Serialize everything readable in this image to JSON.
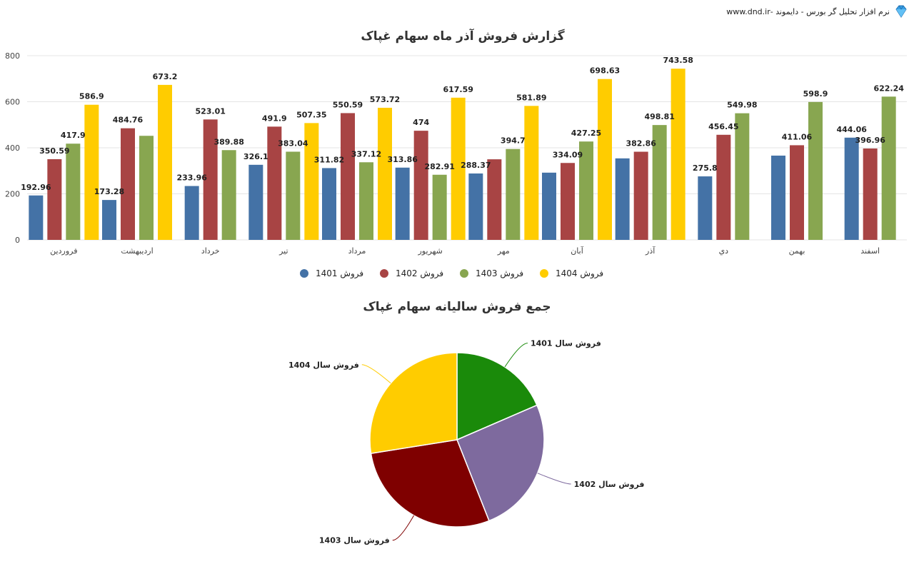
{
  "header": {
    "brand_text": "نرم افزار تحلیل گر بورس - دایموند -www.dnd.ir"
  },
  "colors": {
    "s1401": "#4472a6",
    "s1402": "#a84444",
    "s1403": "#88a650",
    "s1404": "#ffcc00",
    "pie1401": "#1a8a0a",
    "pie1402": "#7e6a9e",
    "pie1403": "#7f0000",
    "pie1404": "#ffcc00"
  },
  "chart_data": [
    {
      "type": "bar",
      "title": "گزارش فروش آذر ماه سهام غپاک",
      "categories": [
        "فروردین",
        "اردیبهشت",
        "خرداد",
        "تیر",
        "مرداد",
        "شهریور",
        "مهر",
        "آبان",
        "آذر",
        "دي",
        "بهمن",
        "اسفند"
      ],
      "ylim": [
        0,
        800
      ],
      "yticks": [
        0,
        200,
        400,
        600,
        800
      ],
      "grid": true,
      "legend_position": "bottom",
      "series": [
        {
          "name": "فروش 1401",
          "color": "#4472a6",
          "values": [
            192.96,
            173.28,
            233.96,
            326.1,
            311.82,
            313.86,
            288.37,
            292,
            354,
            275.8,
            366,
            444.06
          ],
          "labels": [
            "192.96",
            "173.28",
            "233.96",
            "326.1",
            "311.82",
            "313.86",
            "288.37",
            "",
            "",
            "275.8",
            "",
            "444.06"
          ]
        },
        {
          "name": "فروش 1402",
          "color": "#a84444",
          "values": [
            350.59,
            484.76,
            523.01,
            491.9,
            550.59,
            474,
            350,
            334.09,
            382.86,
            456.45,
            411.06,
            396.96
          ],
          "labels": [
            "350.59",
            "484.76",
            "523.01",
            "491.9",
            "550.59",
            "474",
            "",
            "334.09",
            "382.86",
            "456.45",
            "411.06",
            "396.96"
          ]
        },
        {
          "name": "فروش 1403",
          "color": "#88a650",
          "values": [
            417.9,
            452,
            389.88,
            383.04,
            337.12,
            282.91,
            394.7,
            427.25,
            498.81,
            549.98,
            598.9,
            622.24
          ],
          "labels": [
            "417.9",
            "",
            "389.88",
            "383.04",
            "337.12",
            "282.91",
            "394.7",
            "427.25",
            "498.81",
            "549.98",
            "598.9",
            "622.24"
          ]
        },
        {
          "name": "فروش 1404",
          "color": "#ffcc00",
          "values": [
            586.9,
            673.2,
            null,
            507.35,
            573.72,
            617.59,
            581.89,
            698.63,
            743.58,
            null,
            null,
            null
          ],
          "labels": [
            "586.9",
            "673.2",
            "",
            "507.35",
            "573.72",
            "617.59",
            "581.89",
            "698.63",
            "743.58",
            "",
            "",
            ""
          ]
        }
      ]
    },
    {
      "type": "pie",
      "title": "جمع فروش سالیانه سهام غپاک",
      "slices": [
        {
          "label": "فروش سال 1401",
          "value": 18.5,
          "color": "#1a8a0a"
        },
        {
          "label": "فروش سال 1402",
          "value": 25.5,
          "color": "#7e6a9e"
        },
        {
          "label": "فروش سال 1403",
          "value": 28.5,
          "color": "#7f0000"
        },
        {
          "label": "فروش سال 1404",
          "value": 27.5,
          "color": "#ffcc00"
        }
      ]
    }
  ]
}
